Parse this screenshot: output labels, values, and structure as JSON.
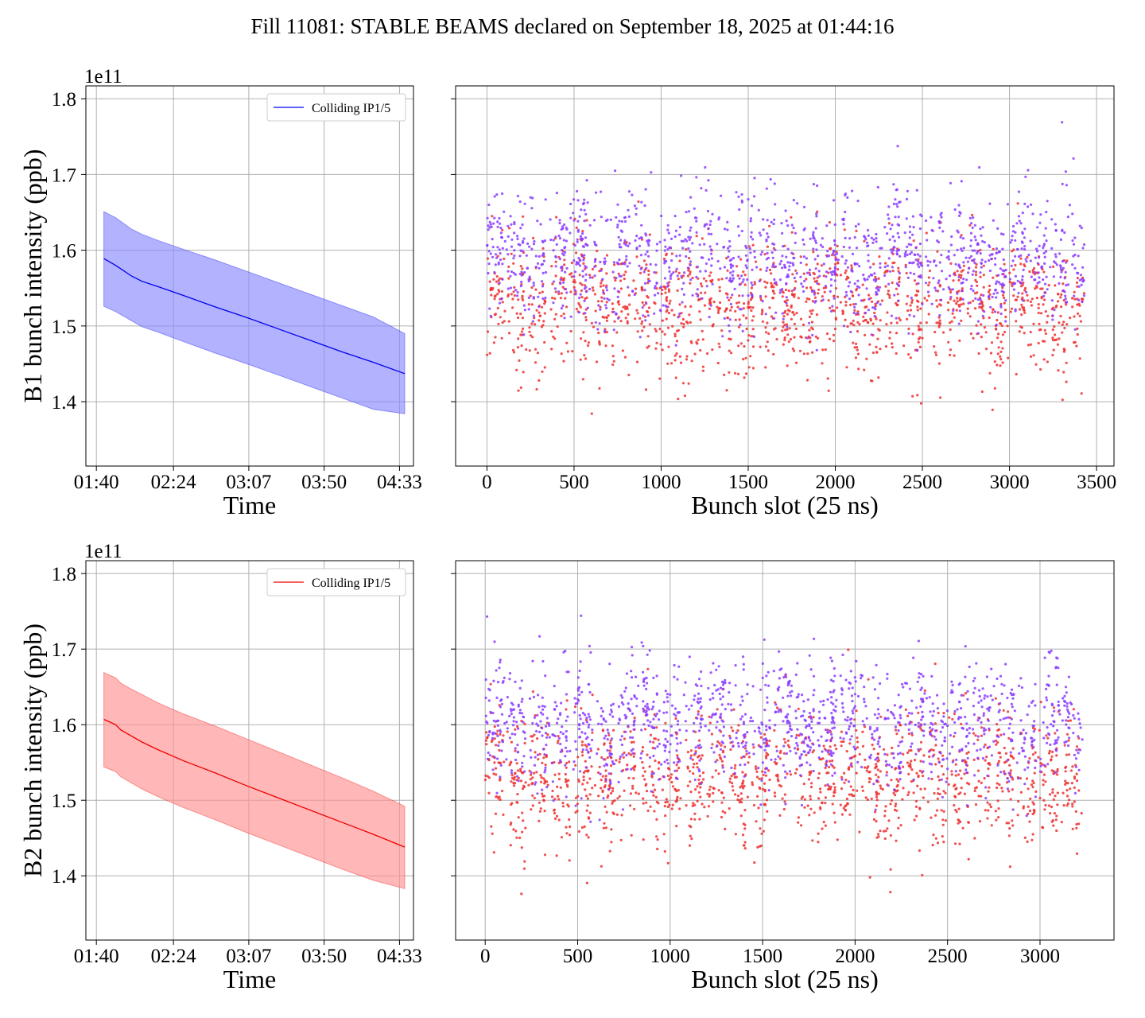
{
  "title": "Fill 11081: STABLE BEAMS declared on September 18, 2025 at 01:44:16",
  "chart_data": [
    {
      "id": "b1-time",
      "type": "line",
      "ylabel": "B1 bunch intensity (ppb)",
      "xlabel": "Time",
      "y_offset_label": "1e11",
      "ylim": [
        1.315,
        1.817
      ],
      "xlim": [
        1.567,
        4.683
      ],
      "x_ticks": [
        {
          "v": 1.6667,
          "label": "01:40"
        },
        {
          "v": 2.4,
          "label": "02:24"
        },
        {
          "v": 3.1167,
          "label": "03:07"
        },
        {
          "v": 3.8333,
          "label": "03:50"
        },
        {
          "v": 4.55,
          "label": "04:33"
        }
      ],
      "y_ticks": [
        {
          "v": 1.4,
          "label": "1.4"
        },
        {
          "v": 1.5,
          "label": "1.5"
        },
        {
          "v": 1.6,
          "label": "1.6"
        },
        {
          "v": 1.7,
          "label": "1.7"
        },
        {
          "v": 1.8,
          "label": "1.8"
        }
      ],
      "legend": {
        "label": "Colliding IP1/5",
        "placement": "upper right"
      },
      "color": "#0000ee",
      "fill_color": "#8888ff",
      "x": [
        1.738,
        1.85,
        2.0,
        2.1,
        2.25,
        2.5,
        2.8,
        3.1,
        3.4,
        3.7,
        4.0,
        4.3,
        4.6
      ],
      "mean": [
        1.589,
        1.58,
        1.566,
        1.559,
        1.552,
        1.54,
        1.525,
        1.511,
        1.496,
        1.481,
        1.466,
        1.452,
        1.437
      ],
      "upper": [
        1.651,
        1.643,
        1.628,
        1.621,
        1.613,
        1.601,
        1.587,
        1.572,
        1.557,
        1.542,
        1.527,
        1.512,
        1.49
      ],
      "lower": [
        1.526,
        1.519,
        1.507,
        1.499,
        1.492,
        1.479,
        1.464,
        1.45,
        1.435,
        1.42,
        1.405,
        1.39,
        1.384
      ]
    },
    {
      "id": "b1-slot",
      "type": "scatter",
      "xlabel": "Bunch slot (25 ns)",
      "ylim": [
        1.315,
        1.817
      ],
      "xlim": [
        -180,
        3600
      ],
      "x_ticks": [
        0,
        500,
        1000,
        1500,
        2000,
        2500,
        3000,
        3500
      ],
      "y_ticks": [
        1.4,
        1.5,
        1.6,
        1.7,
        1.8
      ],
      "slot_max": 3430,
      "n_points": 2700,
      "series": [
        {
          "color": "#ee3030",
          "mean": 1.535,
          "spread": 0.045
        },
        {
          "color": "#8a3cff",
          "mean": 1.6,
          "spread": 0.045
        }
      ]
    },
    {
      "id": "b2-time",
      "type": "line",
      "ylabel": "B2 bunch intensity (ppb)",
      "xlabel": "Time",
      "y_offset_label": "1e11",
      "ylim": [
        1.315,
        1.817
      ],
      "xlim": [
        1.567,
        4.683
      ],
      "x_ticks": [
        {
          "v": 1.6667,
          "label": "01:40"
        },
        {
          "v": 2.4,
          "label": "02:24"
        },
        {
          "v": 3.1167,
          "label": "03:07"
        },
        {
          "v": 3.8333,
          "label": "03:50"
        },
        {
          "v": 4.55,
          "label": "04:33"
        }
      ],
      "y_ticks": [
        {
          "v": 1.4,
          "label": "1.4"
        },
        {
          "v": 1.5,
          "label": "1.5"
        },
        {
          "v": 1.6,
          "label": "1.6"
        },
        {
          "v": 1.7,
          "label": "1.7"
        },
        {
          "v": 1.8,
          "label": "1.8"
        }
      ],
      "legend": {
        "label": "Colliding IP1/5",
        "placement": "upper right"
      },
      "color": "#ee0000",
      "fill_color": "#ff9090",
      "x": [
        1.738,
        1.85,
        1.9,
        2.0,
        2.1,
        2.25,
        2.5,
        2.8,
        3.1,
        3.4,
        3.7,
        4.0,
        4.3,
        4.6
      ],
      "mean": [
        1.607,
        1.6,
        1.593,
        1.585,
        1.577,
        1.567,
        1.552,
        1.536,
        1.519,
        1.503,
        1.487,
        1.471,
        1.455,
        1.438
      ],
      "upper": [
        1.669,
        1.662,
        1.655,
        1.647,
        1.64,
        1.629,
        1.614,
        1.598,
        1.581,
        1.564,
        1.547,
        1.53,
        1.512,
        1.492
      ],
      "lower": [
        1.544,
        1.538,
        1.531,
        1.523,
        1.515,
        1.505,
        1.49,
        1.474,
        1.457,
        1.441,
        1.425,
        1.409,
        1.394,
        1.383
      ]
    },
    {
      "id": "b2-slot",
      "type": "scatter",
      "xlabel": "Bunch slot (25 ns)",
      "ylim": [
        1.315,
        1.817
      ],
      "xlim": [
        -160,
        3400
      ],
      "x_ticks": [
        0,
        500,
        1000,
        1500,
        2000,
        2500,
        3000
      ],
      "y_ticks": [
        1.4,
        1.5,
        1.6,
        1.7,
        1.8
      ],
      "slot_max": 3230,
      "n_points": 2700,
      "series": [
        {
          "color": "#ee3030",
          "mean": 1.54,
          "spread": 0.045
        },
        {
          "color": "#8a3cff",
          "mean": 1.61,
          "spread": 0.045
        }
      ]
    }
  ]
}
